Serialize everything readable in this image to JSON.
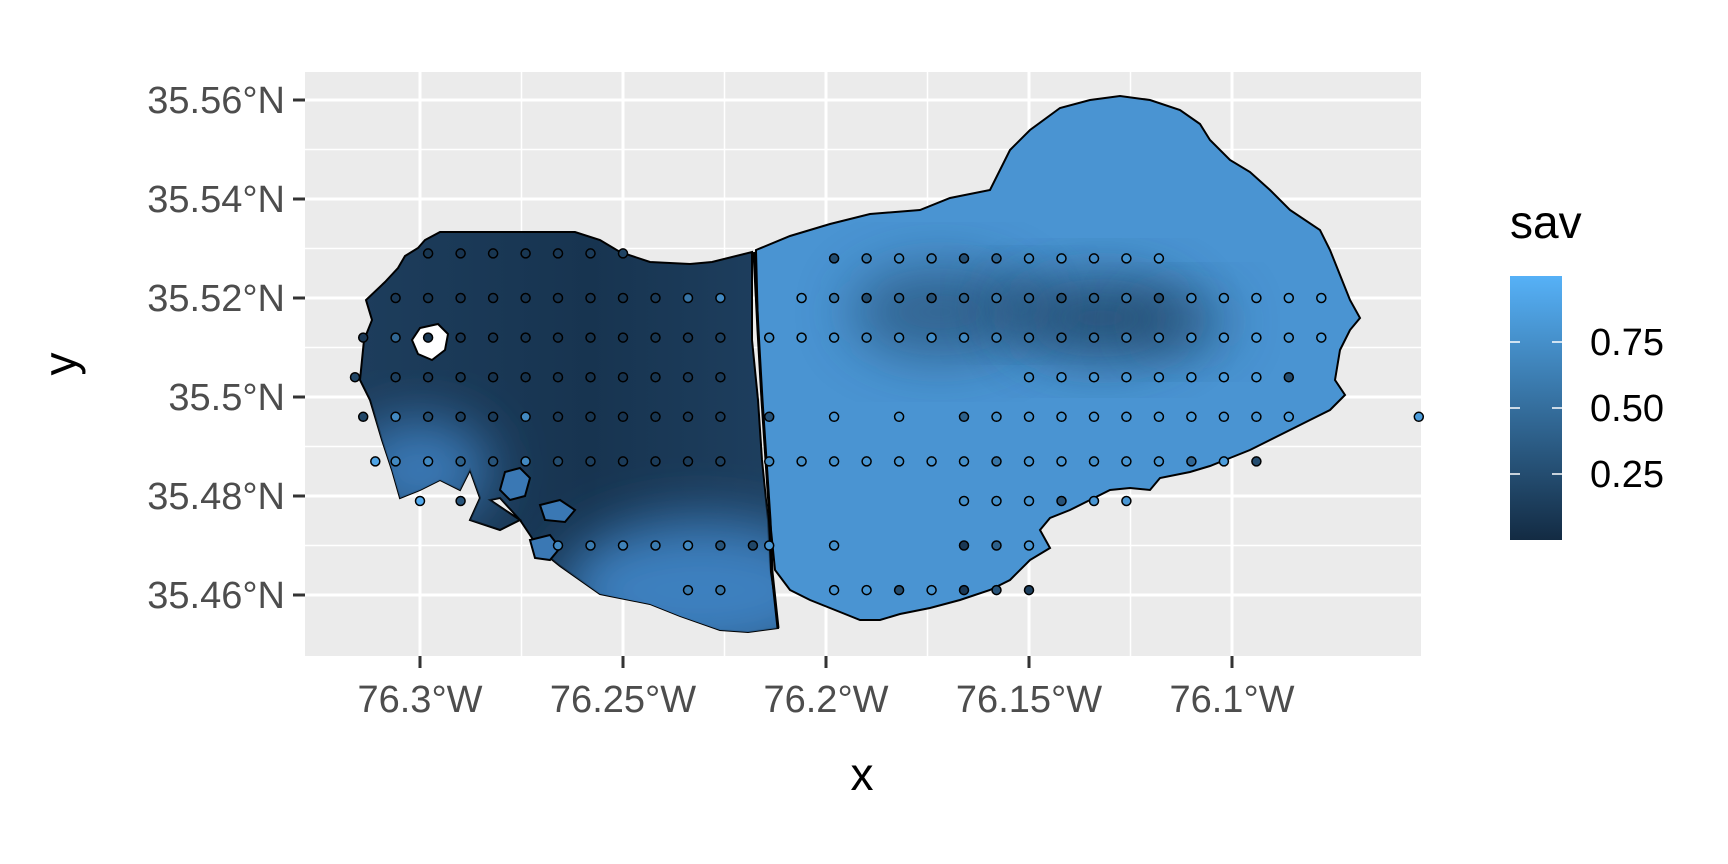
{
  "chart_data": {
    "type": "map",
    "xlabel": "x",
    "ylabel": "y",
    "x_ticks": [
      {
        "value": -76.3,
        "label": "76.3°W"
      },
      {
        "value": -76.25,
        "label": "76.25°W"
      },
      {
        "value": -76.2,
        "label": "76.2°W"
      },
      {
        "value": -76.15,
        "label": "76.15°W"
      },
      {
        "value": -76.1,
        "label": "76.1°W"
      }
    ],
    "y_ticks": [
      {
        "value": 35.56,
        "label": "35.56°N"
      },
      {
        "value": 35.54,
        "label": "35.54°N"
      },
      {
        "value": 35.52,
        "label": "35.52°N"
      },
      {
        "value": 35.5,
        "label": "35.5°N"
      },
      {
        "value": 35.48,
        "label": "35.48°N"
      },
      {
        "value": 35.46,
        "label": "35.46°N"
      }
    ],
    "xlim": [
      -76.328,
      -76.053
    ],
    "ylim": [
      35.4485,
      35.5665
    ],
    "legend": {
      "title": "sav",
      "position": "right",
      "range": [
        0.0,
        1.0
      ],
      "breaks": [
        {
          "value": 0.25,
          "label": "0.25"
        },
        {
          "value": 0.5,
          "label": "0.50"
        },
        {
          "value": 0.75,
          "label": "0.75"
        }
      ],
      "low_color": "#132B43",
      "high_color": "#56B1F7"
    },
    "panel_background": "#ebebeb",
    "gridline_color": "#ffffff",
    "region_outline_color": "#000000",
    "point_rows": [
      {
        "y": 35.529,
        "xs": [
          -76.298,
          -76.29,
          -76.282,
          -76.274,
          -76.266,
          -76.258,
          -76.25
        ],
        "vals": [
          0.08,
          0.07,
          0.08,
          0.09,
          0.1,
          0.12,
          0.18
        ]
      },
      {
        "y": 35.528,
        "xs": [
          -76.198,
          -76.19,
          -76.182,
          -76.174,
          -76.166,
          -76.158,
          -76.15,
          -76.142,
          -76.134,
          -76.126,
          -76.118
        ],
        "vals": [
          0.25,
          0.55,
          0.7,
          0.62,
          0.28,
          0.45,
          0.7,
          0.75,
          0.72,
          0.78,
          0.8
        ]
      },
      {
        "y": 35.52,
        "xs": [
          -76.306,
          -76.298,
          -76.29,
          -76.282,
          -76.274,
          -76.266,
          -76.258,
          -76.25,
          -76.242,
          -76.234,
          -76.226,
          -76.206,
          -76.198,
          -76.19,
          -76.182,
          -76.174,
          -76.166,
          -76.158,
          -76.15,
          -76.142,
          -76.134,
          -76.126,
          -76.118,
          -76.11,
          -76.102,
          -76.094,
          -76.086,
          -76.078
        ],
        "vals": [
          0.1,
          0.08,
          0.07,
          0.07,
          0.06,
          0.06,
          0.07,
          0.08,
          0.12,
          0.55,
          0.7,
          0.8,
          0.55,
          0.25,
          0.45,
          0.3,
          0.4,
          0.55,
          0.45,
          0.3,
          0.4,
          0.55,
          0.3,
          0.7,
          0.75,
          0.8,
          0.85,
          0.85
        ]
      },
      {
        "y": 35.512,
        "xs": [
          -76.314,
          -76.306,
          -76.298,
          -76.29,
          -76.282,
          -76.274,
          -76.266,
          -76.258,
          -76.25,
          -76.242,
          -76.234,
          -76.226,
          -76.214,
          -76.206,
          -76.198,
          -76.19,
          -76.182,
          -76.174,
          -76.166,
          -76.158,
          -76.15,
          -76.142,
          -76.134,
          -76.126,
          -76.118,
          -76.11,
          -76.102,
          -76.094,
          -76.086,
          -76.078
        ],
        "vals": [
          0.1,
          0.45,
          0.08,
          0.07,
          0.06,
          0.06,
          0.05,
          0.05,
          0.06,
          0.08,
          0.1,
          0.15,
          0.75,
          0.8,
          0.75,
          0.65,
          0.7,
          0.75,
          0.7,
          0.65,
          0.55,
          0.45,
          0.5,
          0.6,
          0.65,
          0.75,
          0.8,
          0.85,
          0.8,
          0.85
        ]
      },
      {
        "y": 35.504,
        "xs": [
          -76.316,
          -76.306,
          -76.298,
          -76.29,
          -76.282,
          -76.274,
          -76.266,
          -76.258,
          -76.25,
          -76.242,
          -76.234,
          -76.226,
          -76.15,
          -76.142,
          -76.134,
          -76.126,
          -76.118,
          -76.11,
          -76.102,
          -76.094,
          -76.086
        ],
        "vals": [
          0.2,
          0.15,
          0.1,
          0.08,
          0.06,
          0.05,
          0.05,
          0.05,
          0.06,
          0.08,
          0.1,
          0.12,
          0.75,
          0.8,
          0.78,
          0.8,
          0.82,
          0.85,
          0.85,
          0.85,
          0.25
        ]
      },
      {
        "y": 35.496,
        "xs": [
          -76.314,
          -76.306,
          -76.298,
          -76.29,
          -76.282,
          -76.274,
          -76.266,
          -76.258,
          -76.25,
          -76.242,
          -76.234,
          -76.226,
          -76.214,
          -76.198,
          -76.182,
          -76.166,
          -76.158,
          -76.15,
          -76.142,
          -76.134,
          -76.126,
          -76.118,
          -76.11,
          -76.102,
          -76.094,
          -76.086,
          -76.054
        ],
        "vals": [
          0.2,
          0.7,
          0.25,
          0.15,
          0.12,
          0.7,
          0.1,
          0.08,
          0.07,
          0.08,
          0.1,
          0.12,
          0.3,
          0.8,
          0.8,
          0.4,
          0.75,
          0.8,
          0.8,
          0.8,
          0.8,
          0.82,
          0.85,
          0.8,
          0.8,
          0.85,
          0.85
        ]
      },
      {
        "y": 35.487,
        "xs": [
          -76.311,
          -76.306,
          -76.298,
          -76.29,
          -76.282,
          -76.274,
          -76.266,
          -76.258,
          -76.25,
          -76.242,
          -76.234,
          -76.226,
          -76.214,
          -76.206,
          -76.198,
          -76.19,
          -76.182,
          -76.174,
          -76.166,
          -76.158,
          -76.15,
          -76.142,
          -76.134,
          -76.126,
          -76.118,
          -76.11,
          -76.102,
          -76.094
        ],
        "vals": [
          0.9,
          0.7,
          0.7,
          0.4,
          0.3,
          0.7,
          0.25,
          0.15,
          0.12,
          0.12,
          0.12,
          0.15,
          0.7,
          0.75,
          0.75,
          0.8,
          0.8,
          0.8,
          0.75,
          0.55,
          0.8,
          0.8,
          0.75,
          0.8,
          0.8,
          0.45,
          0.85,
          0.25
        ]
      },
      {
        "y": 35.479,
        "xs": [
          -76.3,
          -76.29,
          -76.166,
          -76.158,
          -76.15,
          -76.142,
          -76.134,
          -76.126
        ],
        "vals": [
          0.95,
          0.3,
          0.75,
          0.75,
          0.8,
          0.3,
          0.8,
          0.8
        ]
      },
      {
        "y": 35.47,
        "xs": [
          -76.266,
          -76.258,
          -76.25,
          -76.242,
          -76.234,
          -76.226,
          -76.218,
          -76.214,
          -76.198,
          -76.166,
          -76.158,
          -76.15
        ],
        "vals": [
          0.7,
          0.6,
          0.65,
          0.6,
          0.7,
          0.3,
          0.2,
          0.8,
          0.75,
          0.1,
          0.4,
          0.8
        ]
      },
      {
        "y": 35.461,
        "xs": [
          -76.234,
          -76.226,
          -76.198,
          -76.19,
          -76.182,
          -76.174,
          -76.166,
          -76.158,
          -76.15
        ],
        "vals": [
          0.6,
          0.55,
          0.8,
          0.8,
          0.25,
          0.8,
          0.1,
          0.3,
          0.15
        ]
      }
    ]
  }
}
